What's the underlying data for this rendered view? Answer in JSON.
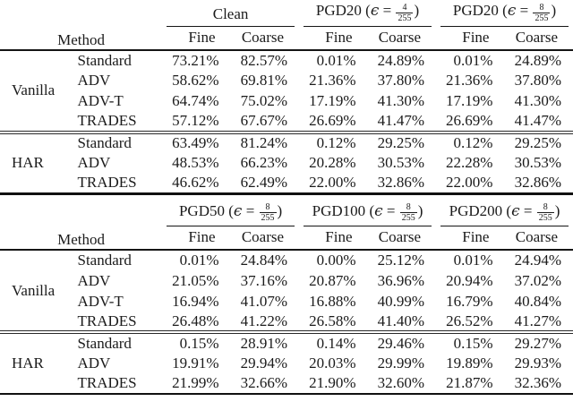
{
  "page": {
    "background": "#ffffff",
    "text_color": "#1b1b1b",
    "rule_color": "#111111"
  },
  "tables": [
    {
      "method_header": "Method",
      "sub_headers": [
        "Fine",
        "Coarse"
      ],
      "col_groups": [
        {
          "label": "Clean",
          "eps": null
        },
        {
          "label": "PGD20",
          "eps": {
            "prefix": "(",
            "symbol": "ϵ",
            "eq": " = ",
            "num": "4",
            "den": "255",
            "suffix": ")"
          }
        },
        {
          "label": "PGD20",
          "eps": {
            "prefix": "(",
            "symbol": "ϵ",
            "eq": " = ",
            "num": "8",
            "den": "255",
            "suffix": ")"
          }
        }
      ],
      "groups": [
        {
          "name": "Vanilla",
          "rows": [
            {
              "method": "Standard",
              "values": [
                "73.21%",
                "82.57%",
                "0.01%",
                "24.89%",
                "0.01%",
                "24.89%"
              ]
            },
            {
              "method": "ADV",
              "values": [
                "58.62%",
                "69.81%",
                "21.36%",
                "37.80%",
                "21.36%",
                "37.80%"
              ]
            },
            {
              "method": "ADV-T",
              "values": [
                "64.74%",
                "75.02%",
                "17.19%",
                "41.30%",
                "17.19%",
                "41.30%"
              ]
            },
            {
              "method": "TRADES",
              "values": [
                "57.12%",
                "67.67%",
                "26.69%",
                "41.47%",
                "26.69%",
                "41.47%"
              ]
            }
          ]
        },
        {
          "name": "HAR",
          "rows": [
            {
              "method": "Standard",
              "values": [
                "63.49%",
                "81.24%",
                "0.12%",
                "29.25%",
                "0.12%",
                "29.25%"
              ]
            },
            {
              "method": "ADV",
              "values": [
                "48.53%",
                "66.23%",
                "20.28%",
                "30.53%",
                "22.28%",
                "30.53%"
              ]
            },
            {
              "method": "TRADES",
              "values": [
                "46.62%",
                "62.49%",
                "22.00%",
                "32.86%",
                "22.00%",
                "32.86%"
              ]
            }
          ]
        }
      ]
    },
    {
      "method_header": "Method",
      "sub_headers": [
        "Fine",
        "Coarse"
      ],
      "col_groups": [
        {
          "label": "PGD50",
          "eps": {
            "prefix": "(",
            "symbol": "ϵ",
            "eq": " = ",
            "num": "8",
            "den": "255",
            "suffix": ")"
          }
        },
        {
          "label": "PGD100",
          "eps": {
            "prefix": "(",
            "symbol": "ϵ",
            "eq": " = ",
            "num": "8",
            "den": "255",
            "suffix": ")"
          }
        },
        {
          "label": "PGD200",
          "eps": {
            "prefix": "(",
            "symbol": "ϵ",
            "eq": " = ",
            "num": "8",
            "den": "255",
            "suffix": ")"
          }
        }
      ],
      "groups": [
        {
          "name": "Vanilla",
          "rows": [
            {
              "method": "Standard",
              "values": [
                "0.01%",
                "24.84%",
                "0.00%",
                "25.12%",
                "0.01%",
                "24.94%"
              ]
            },
            {
              "method": "ADV",
              "values": [
                "21.05%",
                "37.16%",
                "20.87%",
                "36.96%",
                "20.94%",
                "37.02%"
              ]
            },
            {
              "method": "ADV-T",
              "values": [
                "16.94%",
                "41.07%",
                "16.88%",
                "40.99%",
                "16.79%",
                "40.84%"
              ]
            },
            {
              "method": "TRADES",
              "values": [
                "26.48%",
                "41.22%",
                "26.58%",
                "41.40%",
                "26.52%",
                "41.27%"
              ]
            }
          ]
        },
        {
          "name": "HAR",
          "rows": [
            {
              "method": "Standard",
              "values": [
                "0.15%",
                "28.91%",
                "0.14%",
                "29.46%",
                "0.15%",
                "29.27%"
              ]
            },
            {
              "method": "ADV",
              "values": [
                "19.91%",
                "29.94%",
                "20.03%",
                "29.99%",
                "19.89%",
                "29.93%"
              ]
            },
            {
              "method": "TRADES",
              "values": [
                "21.99%",
                "32.66%",
                "21.90%",
                "32.60%",
                "21.87%",
                "32.36%"
              ]
            }
          ]
        }
      ]
    }
  ]
}
